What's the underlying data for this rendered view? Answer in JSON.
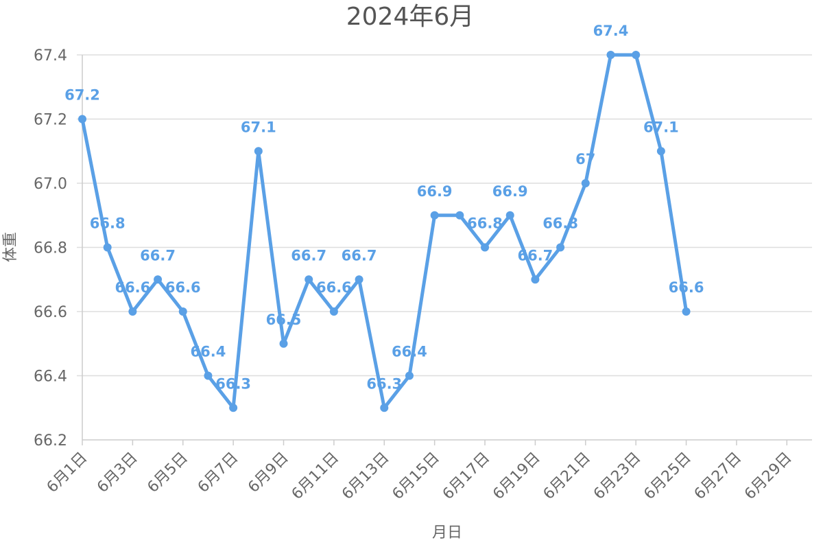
{
  "colors": {
    "series": "#5aa0e6",
    "grid": "#dddddd",
    "text": "#666666"
  },
  "chart_data": {
    "type": "line",
    "title": "2024年6月",
    "xlabel": "月日",
    "ylabel": "体重",
    "ylim": [
      66.2,
      67.4
    ],
    "yticks": [
      66.2,
      66.4,
      66.6,
      66.8,
      67.0,
      67.2,
      67.4
    ],
    "ytick_labels": [
      "66.2",
      "66.4",
      "66.6",
      "66.8",
      "67.0",
      "67.2",
      "67.4"
    ],
    "x_range": [
      1,
      30
    ],
    "xticks": [
      1,
      3,
      5,
      7,
      9,
      11,
      13,
      15,
      17,
      19,
      21,
      23,
      25,
      27,
      29
    ],
    "xtick_labels": [
      "6月1日",
      "6月3日",
      "6月5日",
      "6月7日",
      "6月9日",
      "6月11日",
      "6月13日",
      "6月15日",
      "6月17日",
      "6月19日",
      "6月21日",
      "6月23日",
      "6月25日",
      "6月27日",
      "6月29日"
    ],
    "grid": true,
    "legend": "none",
    "series": [
      {
        "x": [
          1,
          2,
          3,
          4,
          5,
          6,
          7,
          8,
          9,
          10,
          11,
          12,
          13,
          14,
          15,
          16,
          17,
          18,
          19,
          20,
          21,
          22,
          23,
          24,
          25
        ],
        "values": [
          67.2,
          66.8,
          66.6,
          66.7,
          66.6,
          66.4,
          66.3,
          67.1,
          66.5,
          66.7,
          66.6,
          66.7,
          66.3,
          66.4,
          66.9,
          66.9,
          66.8,
          66.9,
          66.7,
          66.8,
          67.0,
          67.4,
          67.4,
          67.1,
          66.6
        ],
        "labels": [
          "67.2",
          "66.8",
          "66.6",
          "66.7",
          "66.6",
          "66.4",
          "66.3",
          "67.1",
          "66.5",
          "66.7",
          "66.6",
          "66.7",
          "66.3",
          "66.4",
          "66.9",
          "",
          "66.8",
          "66.9",
          "66.7",
          "66.8",
          "67",
          "67.4",
          "",
          "67.1",
          "66.6"
        ]
      }
    ]
  }
}
